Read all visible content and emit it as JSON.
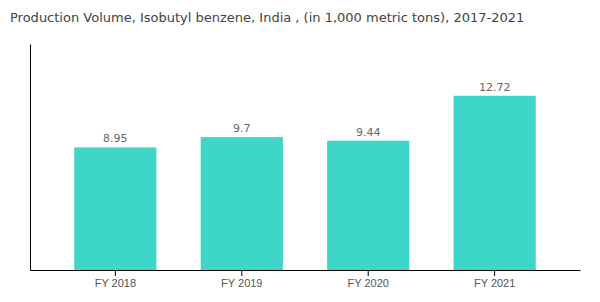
{
  "chart_data": {
    "type": "bar",
    "title": "Production Volume, Isobutyl benzene, India , (in 1,000 metric tons), 2017-2021",
    "categories": [
      "FY 2018",
      "FY 2019",
      "FY 2020",
      "FY 2021"
    ],
    "values": [
      8.95,
      9.7,
      9.44,
      12.72
    ],
    "color": "#3DD6C8",
    "ylim": [
      0,
      16.5
    ],
    "data_labels": true,
    "tick_labels": "x"
  }
}
